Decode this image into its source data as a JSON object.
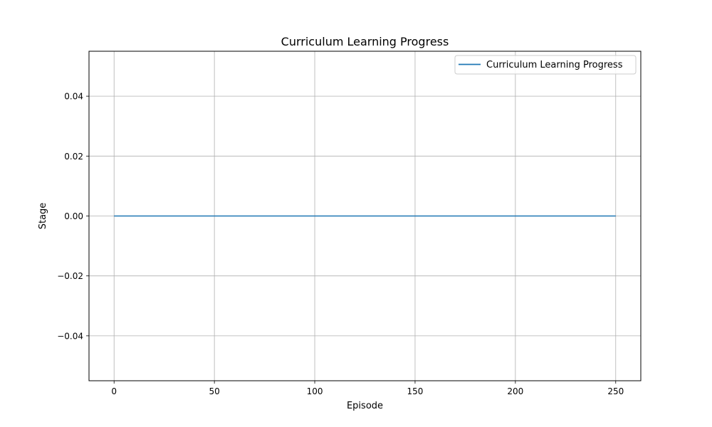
{
  "chart_data": {
    "type": "line",
    "title": "Curriculum Learning Progress",
    "xlabel": "Episode",
    "ylabel": "Stage",
    "xlim": [
      -12.5,
      262.5
    ],
    "ylim": [
      -0.055,
      0.055
    ],
    "xticks": [
      0,
      50,
      100,
      150,
      200,
      250
    ],
    "xtick_labels": [
      "0",
      "50",
      "100",
      "150",
      "200",
      "250"
    ],
    "yticks": [
      -0.04,
      -0.02,
      0.0,
      0.02,
      0.04
    ],
    "ytick_labels": [
      "−0.04",
      "−0.02",
      "0.00",
      "0.02",
      "0.04"
    ],
    "grid": true,
    "legend_position": "top-right",
    "series": [
      {
        "name": "Curriculum Learning Progress",
        "color": "#1f77b4",
        "x": [
          0,
          250
        ],
        "y": [
          0,
          0
        ]
      }
    ]
  }
}
